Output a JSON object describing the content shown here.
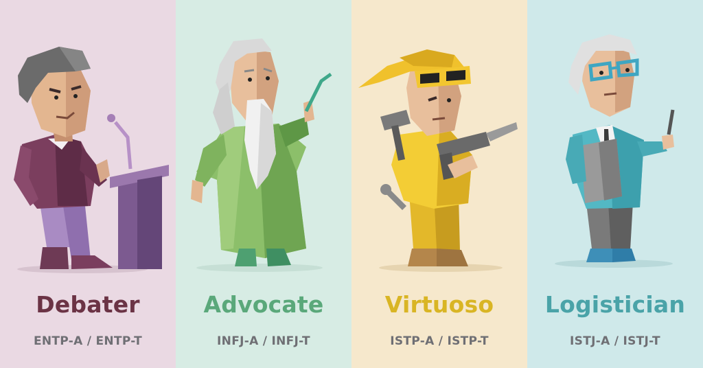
{
  "panels": [
    {
      "title": "Debater",
      "codes": "ENTP-A / ENTP-T",
      "bg": "#ead9e3",
      "accent": "#6b3345"
    },
    {
      "title": "Advocate",
      "codes": "INFJ-A / INFJ-T",
      "bg": "#d7ece4",
      "accent": "#5aa87a"
    },
    {
      "title": "Virtuoso",
      "codes": "ISTP-A / ISTP-T",
      "bg": "#f6e8cc",
      "accent": "#d9b524"
    },
    {
      "title": "Logistician",
      "codes": "ISTJ-A / ISTJ-T",
      "bg": "#cfe9ea",
      "accent": "#4aa3a8"
    }
  ]
}
